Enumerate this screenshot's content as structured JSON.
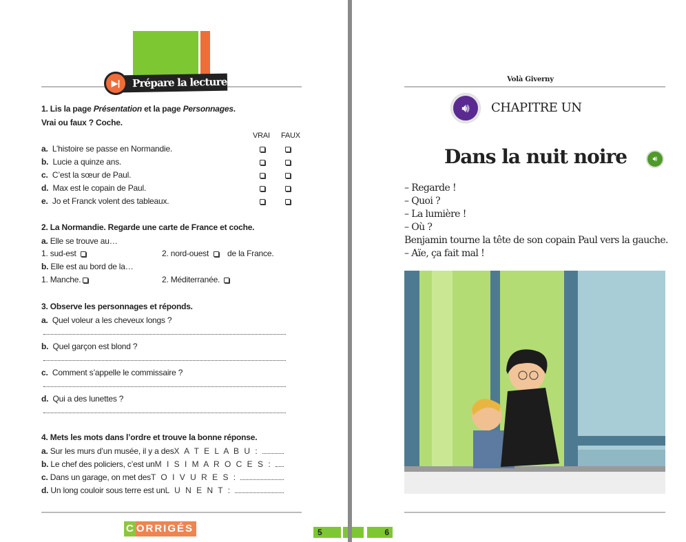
{
  "left_page": {
    "banner": {
      "label": "Prépare la lecture",
      "icon": "skip-forward-icon",
      "colors": {
        "green": "#7dc832",
        "orange": "#ef6d38",
        "dark": "#222222"
      }
    },
    "q1": {
      "title_parts": [
        "1. Lis la page ",
        "Présentation",
        " et la page ",
        "Personnages",
        "."
      ],
      "subtitle": "Vrai ou faux ? Coche.",
      "col_true": "VRAI",
      "col_false": "FAUX",
      "items": [
        {
          "letter": "a.",
          "text": "L’histoire se passe en Normandie."
        },
        {
          "letter": "b.",
          "text": "Lucie a quinze ans."
        },
        {
          "letter": "c.",
          "text": "C’est la sœur de Paul."
        },
        {
          "letter": "d.",
          "text": "Max est le copain de Paul."
        },
        {
          "letter": "e.",
          "text": "Jo et Franck volent des tableaux."
        }
      ]
    },
    "q2": {
      "title": "2. La Normandie. Regarde une carte de France et coche.",
      "a": {
        "letter": "a.",
        "text": "Elle se trouve au…",
        "opt1": "1. sud-est",
        "opt2": "2. nord-ouest",
        "suffix": "de la France."
      },
      "b": {
        "letter": "b.",
        "text": "Elle est au bord de la…",
        "opt1": "1. Manche.",
        "opt2": "2. Méditerranée."
      }
    },
    "q3": {
      "title": "3. Observe les personnages et réponds.",
      "items": [
        {
          "letter": "a.",
          "text": "Quel voleur a les cheveux longs ?"
        },
        {
          "letter": "b.",
          "text": "Quel garçon est blond ?"
        },
        {
          "letter": "c.",
          "text": "Comment s’appelle le commissaire ?"
        },
        {
          "letter": "d.",
          "text": "Qui a des lunettes ?"
        }
      ]
    },
    "q4": {
      "title": "4. Mets les mots dans l’ordre et trouve la bonne réponse.",
      "items": [
        {
          "letter": "a.",
          "text": "Sur les murs d’un musée, il y a des ",
          "word": "X A T E L A B U :"
        },
        {
          "letter": "b.",
          "text": "Le chef des policiers, c’est un ",
          "word": "M I S I M A R O C E S :"
        },
        {
          "letter": "c.",
          "text": "Dans un garage, on met des ",
          "word": "T O I V U R E S :"
        },
        {
          "letter": "d.",
          "text": "Un long couloir sous terre est un ",
          "word": "L U N E N T :"
        }
      ]
    },
    "corriges": {
      "first": "C",
      "rest": "ORRIGÉS"
    },
    "page_number": "5"
  },
  "right_page": {
    "running_head": "Volà Giverny",
    "chapter": {
      "label": "CHAPITRE UN",
      "icon": "audio-speaker-icon",
      "color": "#5a2a91"
    },
    "title": "Dans la nuit noire",
    "title_icon": "audio-speaker-icon",
    "title_icon_color": "#4f9a2a",
    "lines": [
      "– Regarde !",
      "– Quoi ?",
      "– La lumière !",
      "– Où ?",
      "Benjamin tourne la tête de son copain Paul vers la gauche.",
      "– Aïe, ça fait mal !"
    ],
    "page_number": "6"
  }
}
